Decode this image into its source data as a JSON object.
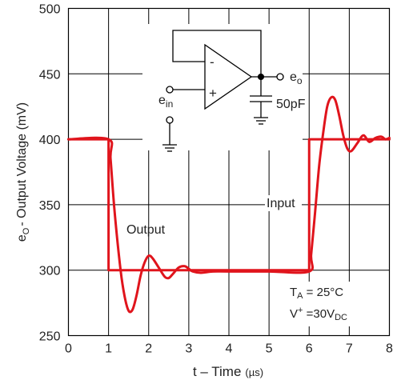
{
  "chart_data": {
    "type": "line",
    "xlabel_main": "t – Time",
    "xlabel_unit": "(µs)",
    "ylabel_parts": [
      "e",
      "O",
      "- Output Voltage (mV)"
    ],
    "xlim": [
      0,
      8
    ],
    "ylim": [
      250,
      500
    ],
    "xticks": [
      0,
      1,
      2,
      3,
      4,
      5,
      6,
      7,
      8
    ],
    "yticks": [
      250,
      300,
      350,
      400,
      450,
      500
    ],
    "grid": true,
    "series": [
      {
        "name": "Input",
        "color": "#e0141c",
        "x": [
          0,
          1,
          1,
          6,
          6,
          8
        ],
        "y": [
          400,
          400,
          300,
          300,
          400,
          400
        ]
      },
      {
        "name": "Output",
        "color": "#e0141c",
        "x": [
          0,
          1,
          1.05,
          1.15,
          1.3,
          1.4,
          1.5,
          1.6,
          1.7,
          1.8,
          1.9,
          2.0,
          2.1,
          2.25,
          2.4,
          2.5,
          2.6,
          2.75,
          2.9,
          3.0,
          3.1,
          3.3,
          3.6,
          4.0,
          5.0,
          6.0,
          6.05,
          6.15,
          6.25,
          6.35,
          6.45,
          6.55,
          6.65,
          6.75,
          6.85,
          6.95,
          7.05,
          7.2,
          7.35,
          7.5,
          7.65,
          7.8,
          7.9,
          8.0
        ],
        "y": [
          400,
          400,
          385,
          345,
          300,
          280,
          269,
          270,
          281,
          296,
          306,
          311,
          309,
          302,
          295,
          294,
          297,
          302,
          303,
          301,
          299,
          298,
          299,
          299,
          299,
          299,
          312,
          345,
          380,
          405,
          425,
          432,
          430,
          418,
          403,
          393,
          391,
          397,
          403,
          398,
          401,
          402,
          400,
          401
        ]
      }
    ],
    "annotations": {
      "output": "Output",
      "input": "Input",
      "ta_main": "T",
      "ta_sub": "A",
      "ta_rest": " = 25°C",
      "vplus_main": "V",
      "vplus_sup": "+",
      "vplus_rest": " =30V",
      "vplus_sub": "DC"
    },
    "schematic": {
      "minus_sign": "-",
      "plus_sign": "+",
      "eo_main": "e",
      "eo_sub": "o",
      "ein_main": "e",
      "ein_sub": "in",
      "cap_label": "50pF"
    }
  }
}
